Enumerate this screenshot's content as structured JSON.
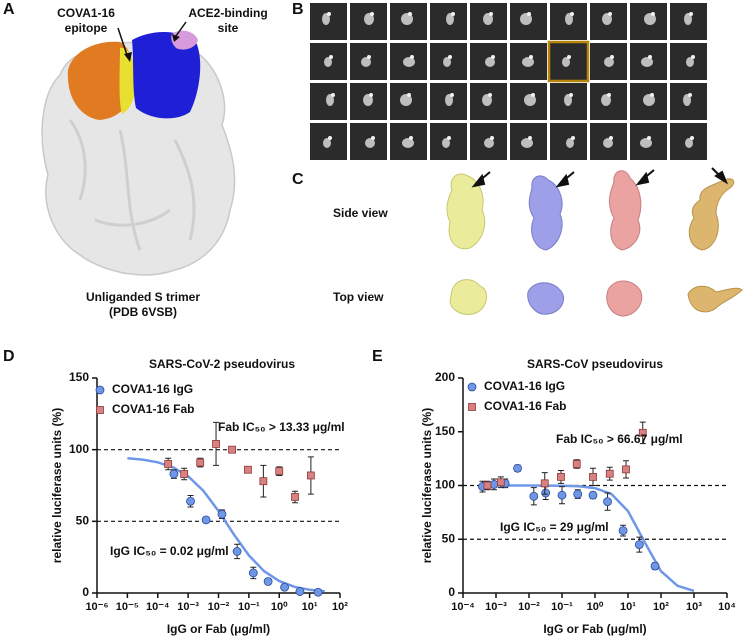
{
  "figure": {
    "panel_labels": [
      "A",
      "B",
      "C",
      "D",
      "E"
    ],
    "panel_a": {
      "epitope_label": [
        "COVA1-16",
        "epitope"
      ],
      "ace2_label": [
        "ACE2-binding",
        "site"
      ],
      "caption": [
        "Unliganded S trimer",
        "(PDB 6VSB)"
      ]
    },
    "panel_c": {
      "side_view_label": "Side view",
      "top_view_label": "Top view"
    }
  },
  "chart_data": [
    {
      "type": "scatter",
      "title": "SARS-CoV-2 pseudovirus",
      "xlabel": "IgG or Fab (μg/ml)",
      "ylabel": "relative luciferase units (%)",
      "xscale": "log",
      "xlim": [
        1e-06,
        100
      ],
      "ylim": [
        0,
        150
      ],
      "xticks": [
        {
          "value": 1e-06,
          "label": "10⁻⁶"
        },
        {
          "value": 1e-05,
          "label": "10⁻⁵"
        },
        {
          "value": 0.0001,
          "label": "10⁻⁴"
        },
        {
          "value": 0.001,
          "label": "10⁻³"
        },
        {
          "value": 0.01,
          "label": "10⁻²"
        },
        {
          "value": 0.1,
          "label": "10⁻¹"
        },
        {
          "value": 1,
          "label": "10⁰"
        },
        {
          "value": 10,
          "label": "10¹"
        },
        {
          "value": 100,
          "label": "10²"
        }
      ],
      "yticks": [
        0,
        50,
        100,
        150
      ],
      "reference_lines": [
        100,
        50
      ],
      "series": [
        {
          "name": "COVA1-16 IgG",
          "color": "#6f97e6",
          "marker": "circle",
          "x": [
            0.00034,
            0.0012,
            0.0039,
            0.013,
            0.041,
            0.14,
            0.43,
            1.5,
            4.8,
            19
          ],
          "values": [
            83,
            64,
            51,
            55,
            29,
            14,
            8,
            4,
            1,
            0.5
          ],
          "errors": [
            3,
            4,
            2,
            3,
            5,
            4,
            2,
            1,
            1,
            1
          ]
        },
        {
          "name": "COVA1-16 Fab",
          "color": "#d98080",
          "marker": "square",
          "x": [
            0.00022,
            0.00074,
            0.0025,
            0.0083,
            0.028,
            0.093,
            0.3,
            1.0,
            3.3,
            11
          ],
          "values": [
            90,
            83,
            91,
            104,
            100,
            86,
            78,
            85,
            67,
            82
          ],
          "errors": [
            4,
            4,
            3,
            15,
            2,
            2,
            11,
            3,
            4,
            13
          ]
        }
      ],
      "fit_curves": [
        {
          "color": "#6f97e6",
          "x": [
            1e-05,
            3.16e-05,
            0.0001,
            0.000316,
            0.001,
            0.00316,
            0.01,
            0.0316,
            0.1,
            0.316,
            1,
            3.16,
            10,
            31.6
          ],
          "values": [
            94.0,
            93.1,
            91.2,
            87.7,
            81.5,
            71.4,
            57.2,
            41.0,
            26.2,
            15.2,
            8.3,
            4.3,
            2.2,
            1.1
          ]
        }
      ],
      "annotations": [
        {
          "text": "Fab IC₅₀ > 13.33 μg/ml"
        },
        {
          "text": "IgG IC₅₀ = 0.02 μg/ml"
        }
      ]
    },
    {
      "type": "scatter",
      "title": "SARS-CoV pseudovirus",
      "xlabel": "IgG or Fab (μg/ml)",
      "ylabel": "relative luciferase units (%)",
      "xscale": "log",
      "xlim": [
        0.0001,
        10000
      ],
      "ylim": [
        0,
        200
      ],
      "xticks": [
        {
          "value": 0.0001,
          "label": "10⁻⁴"
        },
        {
          "value": 0.001,
          "label": "10⁻³"
        },
        {
          "value": 0.01,
          "label": "10⁻²"
        },
        {
          "value": 0.1,
          "label": "10⁻¹"
        },
        {
          "value": 1,
          "label": "10⁰"
        },
        {
          "value": 10,
          "label": "10¹"
        },
        {
          "value": 100,
          "label": "10²"
        },
        {
          "value": 1000,
          "label": "10³"
        },
        {
          "value": 10000,
          "label": "10⁴"
        }
      ],
      "yticks": [
        0,
        50,
        100,
        150,
        200
      ],
      "reference_lines": [
        100,
        50
      ],
      "series": [
        {
          "name": "COVA1-16 IgG",
          "color": "#6f97e6",
          "marker": "circle",
          "x": [
            0.00039,
            0.00087,
            0.0019,
            0.0045,
            0.014,
            0.032,
            0.1,
            0.3,
            0.87,
            2.4,
            7.1,
            22,
            66
          ],
          "values": [
            99,
            101,
            102,
            116,
            90,
            93,
            91,
            92,
            91,
            85,
            58,
            45,
            25
          ],
          "errors": [
            5,
            5,
            4,
            3,
            8,
            6,
            8,
            4,
            3,
            8,
            5,
            7,
            3
          ]
        },
        {
          "name": "COVA1-16 Fab",
          "color": "#d98080",
          "marker": "square",
          "x": [
            0.00055,
            0.0014,
            0.03,
            0.093,
            0.28,
            0.87,
            2.8,
            8.7,
            28
          ],
          "values": [
            100,
            103,
            102,
            108,
            120,
            108,
            111,
            115,
            149
          ],
          "errors": [
            4,
            5,
            10,
            6,
            4,
            8,
            6,
            8,
            10
          ]
        }
      ],
      "fit_curves": [
        {
          "color": "#6f97e6",
          "x": [
            0.001,
            0.01,
            0.1,
            0.316,
            1,
            3.16,
            10,
            31.6,
            100,
            316,
            1000
          ],
          "values": [
            100,
            100,
            99.8,
            99.3,
            97.6,
            92.0,
            76.2,
            47.5,
            20.3,
            6.7,
            2.0
          ]
        }
      ],
      "annotations": [
        {
          "text": "Fab IC₅₀ > 66.67 μg/ml"
        },
        {
          "text": "IgG IC₅₀ = 29 μg/ml"
        }
      ]
    }
  ]
}
